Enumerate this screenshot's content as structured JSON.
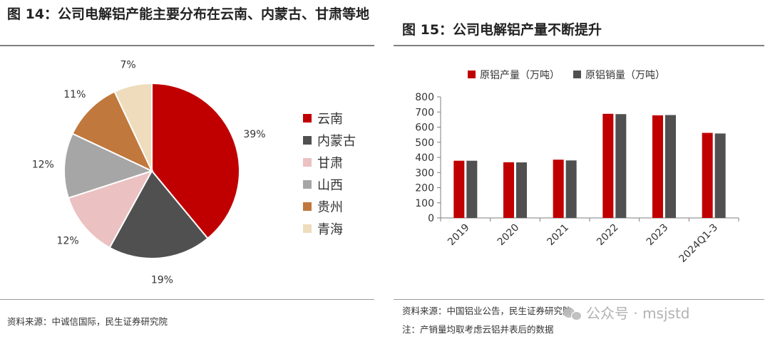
{
  "left": {
    "title": "图 14：公司电解铝产能主要分布在云南、内蒙古、甘肃等地",
    "source": "资料来源：中诚信国际，民生证券研究院"
  },
  "right": {
    "title": "图 15：公司电解铝产量不断提升",
    "source": "资料来源：中国铝业公告，民生证券研究院",
    "note": "注：产销量均取考虑云铝并表后的数据"
  },
  "watermark": "公众号 · msjstd",
  "colors": {
    "red": "#c00000",
    "gray": "#505050",
    "pink": "#ebc1c1",
    "lightgray": "#a6a6a6",
    "orange": "#c0783c",
    "beige": "#eedcbc"
  },
  "chart_data": [
    {
      "type": "pie",
      "title": "图 14：公司电解铝产能主要分布在云南、内蒙古、甘肃等地",
      "legend_position": "right",
      "slices": [
        {
          "name": "云南",
          "value": 39,
          "label": "39%",
          "color": "#c00000"
        },
        {
          "name": "内蒙古",
          "value": 19,
          "label": "19%",
          "color": "#505050"
        },
        {
          "name": "甘肃",
          "value": 12,
          "label": "12%",
          "color": "#ebc1c1"
        },
        {
          "name": "山西",
          "value": 12,
          "label": "12%",
          "color": "#a6a6a6"
        },
        {
          "name": "贵州",
          "value": 11,
          "label": "11%",
          "color": "#c0783c"
        },
        {
          "name": "青海",
          "value": 7,
          "label": "7%",
          "color": "#eedcbc"
        }
      ]
    },
    {
      "type": "bar",
      "title": "图 15：公司电解铝产量不断提升",
      "categories": [
        "2019",
        "2020",
        "2021",
        "2022",
        "2023",
        "2024Q1-3"
      ],
      "series": [
        {
          "name": "原铝产量（万吨）",
          "color": "#c00000",
          "values": [
            378,
            368,
            385,
            688,
            678,
            562
          ]
        },
        {
          "name": "原铝销量（万吨）",
          "color": "#505050",
          "values": [
            378,
            367,
            380,
            686,
            680,
            558
          ]
        }
      ],
      "ylim": [
        0,
        800
      ],
      "yticks": [
        "0",
        "100",
        "200",
        "300",
        "400",
        "500",
        "600",
        "700",
        "800"
      ],
      "legend_position": "top",
      "grid": false
    }
  ]
}
